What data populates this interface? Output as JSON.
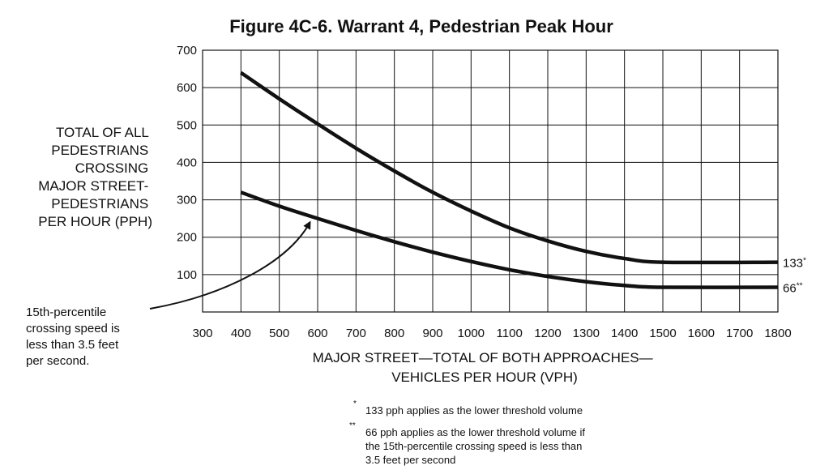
{
  "chart_data": {
    "type": "line",
    "title": "Figure 4C-6.  Warrant 4, Pedestrian Peak Hour",
    "ylabel": [
      "TOTAL OF ALL",
      "PEDESTRIANS",
      "CROSSING",
      "MAJOR STREET-",
      "PEDESTRIANS",
      "PER HOUR (PPH)"
    ],
    "xlabel": [
      "MAJOR STREET—TOTAL OF BOTH APPROACHES—",
      "VEHICLES PER HOUR (VPH)"
    ],
    "xlim": [
      300,
      1800
    ],
    "ylim": [
      0,
      700
    ],
    "x_ticks": [
      300,
      400,
      500,
      600,
      700,
      800,
      900,
      1000,
      1100,
      1200,
      1300,
      1400,
      1500,
      1600,
      1700,
      1800
    ],
    "y_ticks": [
      100,
      200,
      300,
      400,
      500,
      600,
      700
    ],
    "grid": true,
    "series": [
      {
        "end_label": "133",
        "end_mark": "*",
        "points": [
          [
            400,
            640
          ],
          [
            500,
            570
          ],
          [
            600,
            503
          ],
          [
            700,
            438
          ],
          [
            800,
            377
          ],
          [
            900,
            320
          ],
          [
            1000,
            270
          ],
          [
            1100,
            225
          ],
          [
            1200,
            190
          ],
          [
            1300,
            162
          ],
          [
            1400,
            143
          ],
          [
            1500,
            133
          ],
          [
            1800,
            133
          ]
        ]
      },
      {
        "end_label": "66",
        "end_mark": "**",
        "points": [
          [
            400,
            320
          ],
          [
            500,
            283
          ],
          [
            600,
            250
          ],
          [
            700,
            218
          ],
          [
            800,
            188
          ],
          [
            900,
            160
          ],
          [
            1000,
            135
          ],
          [
            1100,
            113
          ],
          [
            1200,
            95
          ],
          [
            1300,
            81
          ],
          [
            1400,
            71
          ],
          [
            1500,
            66
          ],
          [
            1800,
            66
          ]
        ]
      }
    ],
    "annotation": {
      "lines": [
        "15th-percentile",
        "crossing speed is",
        "less than 3.5 feet",
        "per second."
      ],
      "points_to": [
        580,
        240
      ]
    },
    "footnotes": [
      {
        "mark": "*",
        "lines": [
          "133 pph applies as the lower threshold volume"
        ]
      },
      {
        "mark": "**",
        "lines": [
          "66 pph applies as the lower threshold volume if",
          "the 15th-percentile crossing speed is less than",
          "3.5 feet per second"
        ]
      }
    ]
  }
}
